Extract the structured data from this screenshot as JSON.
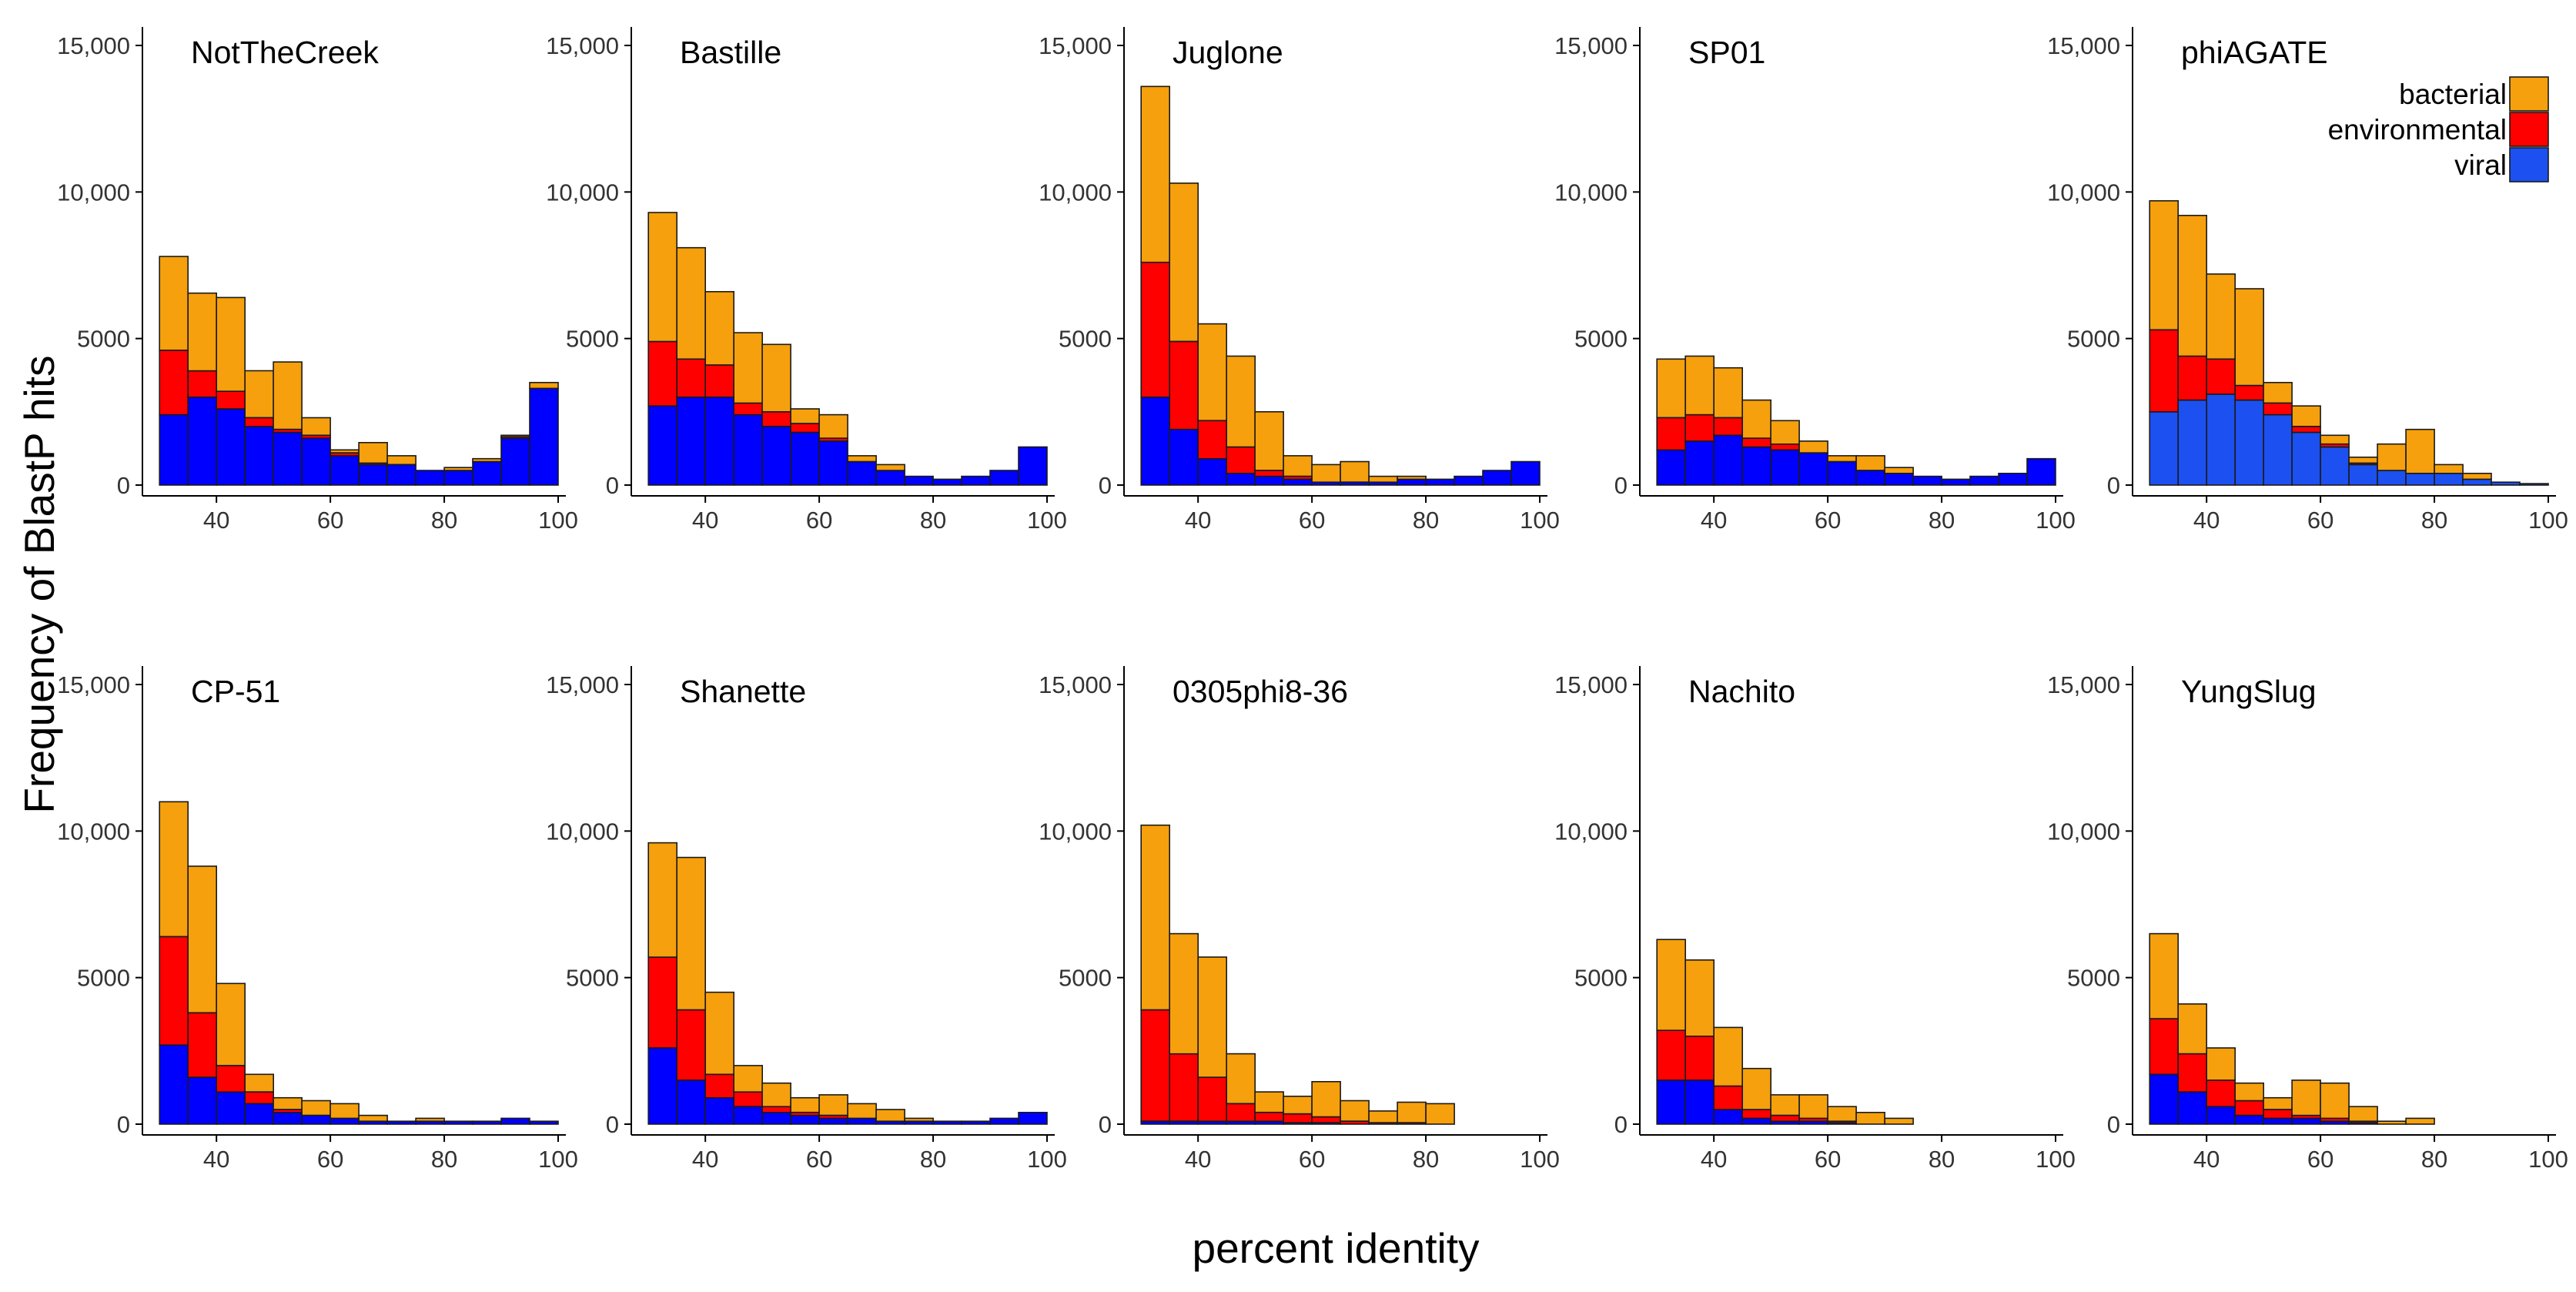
{
  "chart_data": {
    "type": "bar",
    "stacked": true,
    "xlabel": "percent identity",
    "ylabel": "Frequency of BlastP hits",
    "x_bin_width": 5,
    "x_bins": [
      30,
      35,
      40,
      45,
      50,
      55,
      60,
      65,
      70,
      75,
      80,
      85,
      90,
      95
    ],
    "x_ticks": [
      40,
      60,
      80,
      100
    ],
    "x_tick_labels": [
      "40",
      "60",
      "80",
      "100"
    ],
    "xlim": [
      27,
      100
    ],
    "y_ticks": [
      0,
      5000,
      10000,
      15000
    ],
    "y_tick_labels": [
      "0",
      "5000",
      "10,000",
      "15,000"
    ],
    "ylim": [
      0,
      15500
    ],
    "series_order": [
      "viral",
      "environmental",
      "bacterial"
    ],
    "legend": {
      "position": "top-right",
      "entries": [
        {
          "name": "bacterial",
          "color": "#f5a00c"
        },
        {
          "name": "environmental",
          "color": "#ff0000"
        },
        {
          "name": "viral",
          "color": "#0000ff"
        }
      ]
    },
    "panels": [
      {
        "title": "NotTheCreek",
        "color_viral": "#0000ff",
        "viral": [
          2400,
          3000,
          2600,
          2000,
          1800,
          1600,
          1000,
          700,
          700,
          500,
          500,
          800,
          1600,
          3300
        ],
        "environmental": [
          2200,
          900,
          600,
          300,
          100,
          100,
          100,
          50,
          0,
          0,
          0,
          0,
          50,
          0
        ],
        "bacterial": [
          3200,
          2650,
          3200,
          1600,
          2300,
          600,
          100,
          700,
          300,
          0,
          100,
          100,
          50,
          200
        ]
      },
      {
        "title": "Bastille",
        "color_viral": "#0000ff",
        "viral": [
          2700,
          3000,
          3000,
          2400,
          2000,
          1800,
          1500,
          800,
          500,
          300,
          200,
          300,
          500,
          1300
        ],
        "environmental": [
          2200,
          1300,
          1100,
          400,
          500,
          300,
          100,
          0,
          0,
          0,
          0,
          0,
          0,
          0
        ],
        "bacterial": [
          4400,
          3800,
          2500,
          2400,
          2300,
          500,
          800,
          200,
          200,
          0,
          0,
          0,
          0,
          0
        ]
      },
      {
        "title": "Juglone",
        "color_viral": "#0000ff",
        "viral": [
          3000,
          1900,
          900,
          400,
          300,
          200,
          100,
          100,
          100,
          200,
          200,
          300,
          500,
          800
        ],
        "environmental": [
          4600,
          3000,
          1300,
          900,
          200,
          100,
          0,
          0,
          0,
          0,
          0,
          0,
          0,
          0
        ],
        "bacterial": [
          6000,
          5400,
          3300,
          3100,
          2000,
          700,
          600,
          700,
          200,
          100,
          0,
          0,
          0,
          0
        ]
      },
      {
        "title": "SP01",
        "color_viral": "#0000ff",
        "viral": [
          1200,
          1500,
          1700,
          1300,
          1200,
          1100,
          800,
          500,
          400,
          300,
          200,
          300,
          400,
          900
        ],
        "environmental": [
          1100,
          900,
          600,
          300,
          200,
          0,
          0,
          0,
          0,
          0,
          0,
          0,
          0,
          0
        ],
        "bacterial": [
          2000,
          2000,
          1700,
          1300,
          800,
          400,
          200,
          500,
          200,
          0,
          0,
          0,
          0,
          0
        ]
      },
      {
        "title": "phiAGATE",
        "color_viral": "#1c50f0",
        "viral": [
          2500,
          2900,
          3100,
          2900,
          2400,
          1800,
          1300,
          700,
          500,
          400,
          400,
          200,
          100,
          50
        ],
        "environmental": [
          2800,
          1500,
          1200,
          500,
          400,
          200,
          100,
          50,
          0,
          0,
          0,
          0,
          0,
          0
        ],
        "bacterial": [
          4400,
          4800,
          2900,
          3300,
          700,
          700,
          300,
          200,
          900,
          1500,
          300,
          200,
          0,
          0
        ]
      },
      {
        "title": "CP-51",
        "color_viral": "#0000ff",
        "viral": [
          2700,
          1600,
          1100,
          700,
          400,
          300,
          200,
          100,
          100,
          100,
          100,
          100,
          200,
          100
        ],
        "environmental": [
          3700,
          2200,
          900,
          400,
          100,
          0,
          0,
          0,
          0,
          0,
          0,
          0,
          0,
          0
        ],
        "bacterial": [
          4600,
          5000,
          2800,
          600,
          400,
          500,
          500,
          200,
          0,
          100,
          0,
          0,
          0,
          0
        ]
      },
      {
        "title": "Shanette",
        "color_viral": "#0000ff",
        "viral": [
          2600,
          1500,
          900,
          600,
          400,
          300,
          200,
          200,
          100,
          100,
          100,
          100,
          200,
          400
        ],
        "environmental": [
          3100,
          2400,
          800,
          500,
          200,
          100,
          100,
          0,
          0,
          0,
          0,
          0,
          0,
          0
        ],
        "bacterial": [
          3900,
          5200,
          2800,
          900,
          800,
          500,
          700,
          500,
          400,
          100,
          0,
          0,
          0,
          0
        ]
      },
      {
        "title": "0305phi8-36",
        "color_viral": "#0000ff",
        "viral": [
          100,
          100,
          100,
          100,
          100,
          50,
          50,
          0,
          0,
          0,
          0,
          0,
          0,
          0
        ],
        "environmental": [
          3800,
          2300,
          1500,
          600,
          300,
          300,
          200,
          100,
          50,
          50,
          0,
          0,
          0,
          0
        ],
        "bacterial": [
          6300,
          4100,
          4100,
          1700,
          700,
          600,
          1200,
          700,
          400,
          700,
          700,
          0,
          0,
          0
        ]
      },
      {
        "title": "Nachito",
        "color_viral": "#0000ff",
        "viral": [
          1500,
          1500,
          500,
          200,
          100,
          100,
          50,
          0,
          0,
          0,
          0,
          0,
          0,
          0
        ],
        "environmental": [
          1700,
          1500,
          800,
          300,
          200,
          100,
          50,
          0,
          0,
          0,
          0,
          0,
          0,
          0
        ],
        "bacterial": [
          3100,
          2600,
          2000,
          1400,
          700,
          800,
          500,
          400,
          200,
          0,
          0,
          0,
          0,
          0
        ]
      },
      {
        "title": "YungSlug",
        "color_viral": "#0000ff",
        "viral": [
          1700,
          1100,
          600,
          300,
          200,
          200,
          100,
          50,
          0,
          0,
          0,
          0,
          0,
          0
        ],
        "environmental": [
          1900,
          1300,
          900,
          500,
          300,
          100,
          100,
          50,
          0,
          0,
          0,
          0,
          0,
          0
        ],
        "bacterial": [
          2900,
          1700,
          1100,
          600,
          400,
          1200,
          1200,
          500,
          100,
          200,
          0,
          0,
          0,
          0
        ]
      }
    ]
  }
}
